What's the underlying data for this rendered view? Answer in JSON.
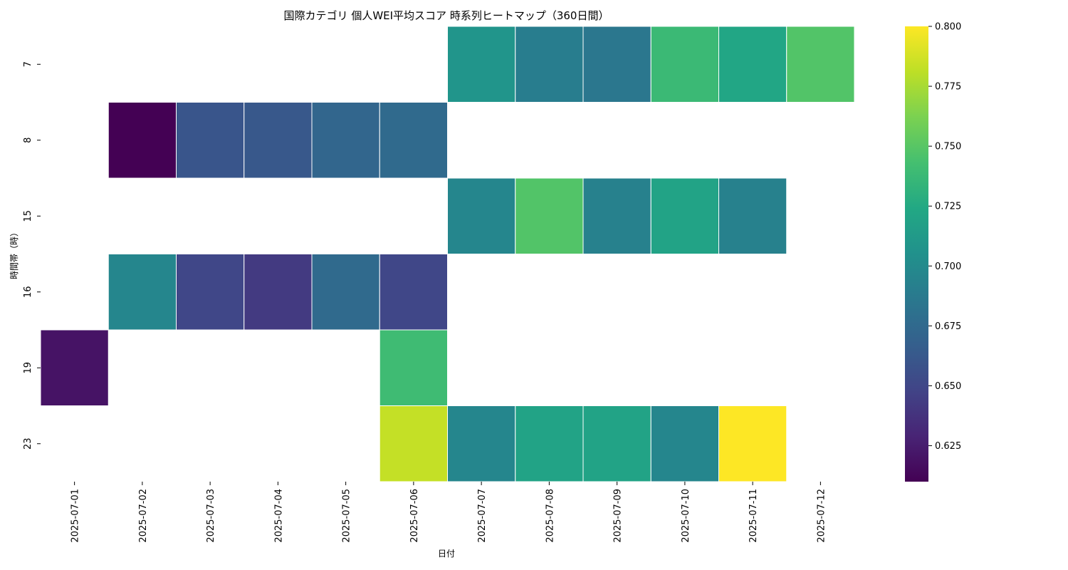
{
  "chart_data": {
    "type": "heatmap",
    "title": "国際カテゴリ 個人WEI平均スコア 時系列ヒートマップ（360日間）",
    "xlabel": "日付",
    "ylabel": "時間帯（時）",
    "x": [
      "2025-07-01",
      "2025-07-02",
      "2025-07-03",
      "2025-07-04",
      "2025-07-05",
      "2025-07-06",
      "2025-07-07",
      "2025-07-08",
      "2025-07-09",
      "2025-07-10",
      "2025-07-11",
      "2025-07-12"
    ],
    "y": [
      "7",
      "8",
      "15",
      "16",
      "19",
      "23"
    ],
    "values": [
      [
        null,
        null,
        null,
        null,
        null,
        null,
        0.708,
        0.69,
        0.685,
        0.738,
        0.722,
        0.748
      ],
      [
        null,
        0.61,
        0.66,
        0.662,
        0.672,
        0.675,
        null,
        null,
        null,
        null,
        null,
        null
      ],
      [
        null,
        null,
        null,
        null,
        null,
        null,
        0.697,
        0.748,
        0.693,
        0.72,
        0.693,
        null
      ],
      [
        null,
        0.697,
        0.65,
        0.642,
        0.675,
        0.65,
        null,
        null,
        null,
        null,
        null,
        null
      ],
      [
        0.62,
        null,
        null,
        null,
        null,
        0.74,
        null,
        null,
        null,
        null,
        null,
        null
      ],
      [
        null,
        null,
        null,
        null,
        null,
        0.783,
        0.697,
        0.72,
        0.72,
        0.697,
        0.8,
        null
      ]
    ],
    "colorscale": "viridis",
    "vmin": 0.61,
    "vmax": 0.8,
    "colorbar_ticks": [
      "0.625",
      "0.650",
      "0.675",
      "0.700",
      "0.725",
      "0.750",
      "0.775",
      "0.800"
    ],
    "grid": false
  }
}
